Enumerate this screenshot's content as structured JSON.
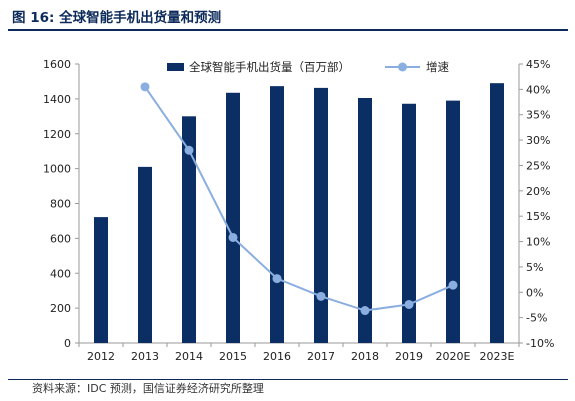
{
  "figure_title": "图 16:  全球智能手机出货量和预测",
  "source_note": "资料来源：IDC 预测，国信证券经济研究所整理",
  "colors": {
    "bar": "#0b2f64",
    "line": "#8aaee0",
    "axis": "#9a9a9a",
    "text": "#222222",
    "title": "#0b2a5a"
  },
  "chart_data": {
    "type": "bar",
    "title": "",
    "xlabel": "",
    "ylabel": "",
    "categories": [
      "2012",
      "2013",
      "2014",
      "2015",
      "2016",
      "2017",
      "2018",
      "2019",
      "2020E",
      "2023E"
    ],
    "series": [
      {
        "name": "全球智能手机出货量（百万部）",
        "type": "bar",
        "axis": "left",
        "values": [
          722,
          1010,
          1300,
          1435,
          1473,
          1463,
          1405,
          1372,
          1390,
          1490
        ]
      },
      {
        "name": "增速",
        "type": "line",
        "axis": "right",
        "values": [
          null,
          0.405,
          0.28,
          0.108,
          0.027,
          -0.008,
          -0.036,
          -0.024,
          0.014,
          null
        ]
      }
    ],
    "y_left": {
      "min": 0,
      "max": 1600,
      "ticks": [
        0,
        200,
        400,
        600,
        800,
        1000,
        1200,
        1400,
        1600
      ],
      "tick_labels": [
        "0",
        "200",
        "400",
        "600",
        "800",
        "1000",
        "1200",
        "1400",
        "1600"
      ]
    },
    "y_right": {
      "min": -0.1,
      "max": 0.45,
      "ticks": [
        -0.1,
        -0.05,
        0,
        0.05,
        0.1,
        0.15,
        0.2,
        0.25,
        0.3,
        0.35,
        0.4,
        0.45
      ],
      "tick_labels": [
        "-10%",
        "-5%",
        "0%",
        "5%",
        "10%",
        "15%",
        "20%",
        "25%",
        "30%",
        "35%",
        "40%",
        "45%"
      ]
    },
    "grid": false,
    "legend": "top-center"
  }
}
